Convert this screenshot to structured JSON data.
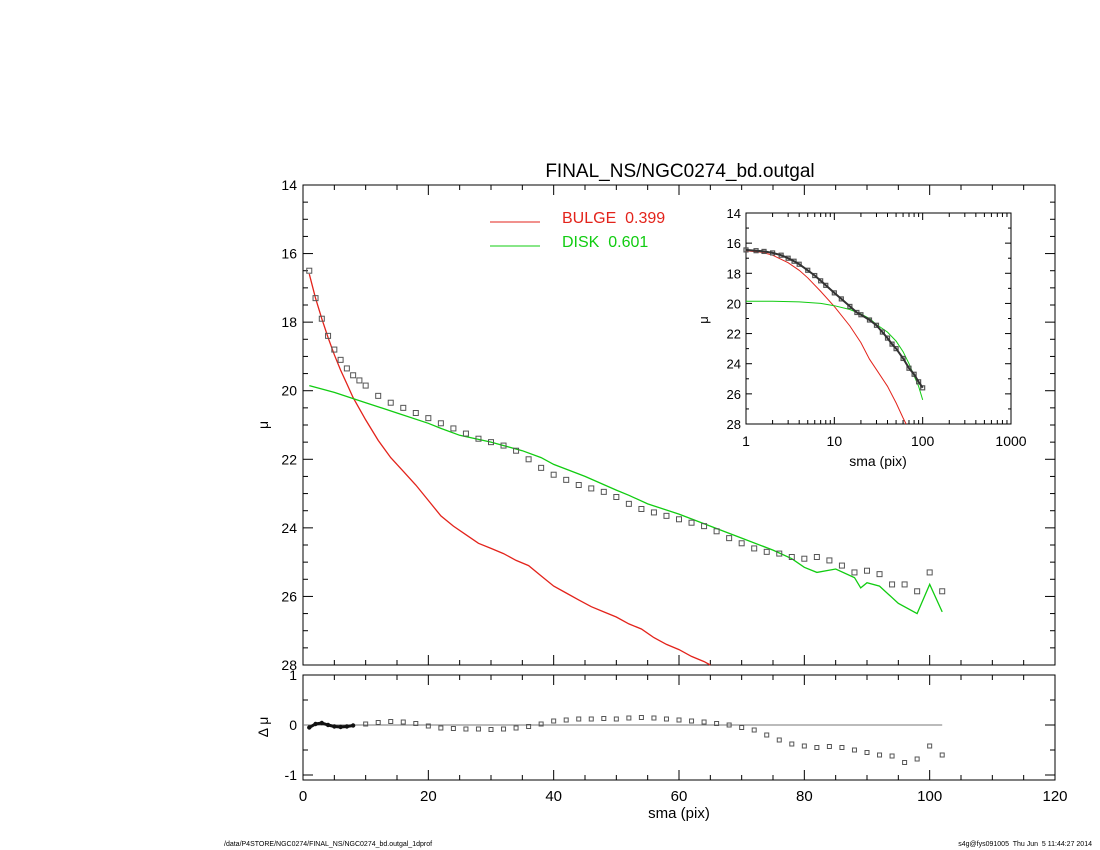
{
  "chart_data": [
    {
      "id": "main",
      "type": "line",
      "title": "FINAL_NS/NGC0274_bd.outgal",
      "xlabel": "sma (pix)",
      "ylabel": "μ",
      "xlim": [
        0,
        120
      ],
      "ylim": [
        28,
        14
      ],
      "y_inverted": true,
      "xticks": [
        0,
        20,
        40,
        60,
        80,
        100,
        120
      ],
      "yticks": [
        14,
        16,
        18,
        20,
        22,
        24,
        26,
        28
      ],
      "grid": false,
      "legend": {
        "position": "top-center"
      },
      "series": [
        {
          "name": "BULGE  0.399",
          "color": "#e3231b",
          "style": "line",
          "x": [
            1,
            2,
            3,
            4,
            5,
            6,
            7,
            8,
            10,
            12,
            14,
            16,
            18,
            20,
            22,
            24,
            26,
            28,
            30,
            32,
            34,
            36,
            38,
            40,
            42,
            44,
            46,
            48,
            50,
            52,
            54,
            56,
            58,
            60,
            62,
            64,
            65
          ],
          "y": [
            16.6,
            17.3,
            17.9,
            18.45,
            18.95,
            19.4,
            19.8,
            20.2,
            20.85,
            21.45,
            21.95,
            22.35,
            22.75,
            23.2,
            23.65,
            23.95,
            24.2,
            24.45,
            24.6,
            24.75,
            24.95,
            25.1,
            25.4,
            25.7,
            25.9,
            26.1,
            26.3,
            26.45,
            26.6,
            26.8,
            26.95,
            27.2,
            27.4,
            27.55,
            27.75,
            27.9,
            28.0
          ]
        },
        {
          "name": "DISK  0.601",
          "color": "#11cc11",
          "style": "line",
          "x": [
            1,
            5,
            10,
            15,
            20,
            22,
            25,
            30,
            35,
            38,
            40,
            45,
            50,
            52,
            55,
            60,
            65,
            70,
            75,
            78,
            80,
            82,
            85,
            88,
            89,
            90,
            92,
            95,
            98,
            100,
            102
          ],
          "y": [
            19.85,
            20.05,
            20.35,
            20.65,
            20.95,
            21.1,
            21.3,
            21.5,
            21.75,
            21.95,
            22.15,
            22.5,
            22.9,
            23.05,
            23.3,
            23.6,
            23.95,
            24.3,
            24.65,
            24.9,
            25.15,
            25.3,
            25.2,
            25.45,
            25.75,
            25.6,
            25.7,
            26.2,
            26.5,
            25.65,
            26.45
          ]
        },
        {
          "name": "",
          "color": "#555555",
          "style": "squares",
          "x": [
            1,
            2,
            3,
            4,
            5,
            6,
            7,
            8,
            9,
            10,
            12,
            14,
            16,
            18,
            20,
            22,
            24,
            26,
            28,
            30,
            32,
            34,
            36,
            38,
            40,
            42,
            44,
            46,
            48,
            50,
            52,
            54,
            56,
            58,
            60,
            62,
            64,
            66,
            68,
            70,
            72,
            74,
            76,
            78,
            80,
            82,
            84,
            86,
            88,
            90,
            92,
            94,
            96,
            98,
            100,
            102
          ],
          "y": [
            16.5,
            17.3,
            17.9,
            18.4,
            18.8,
            19.1,
            19.35,
            19.55,
            19.7,
            19.85,
            20.15,
            20.35,
            20.5,
            20.65,
            20.8,
            20.95,
            21.1,
            21.25,
            21.4,
            21.5,
            21.6,
            21.75,
            22.0,
            22.25,
            22.45,
            22.6,
            22.75,
            22.85,
            22.95,
            23.1,
            23.3,
            23.45,
            23.55,
            23.65,
            23.75,
            23.85,
            23.95,
            24.1,
            24.3,
            24.45,
            24.6,
            24.7,
            24.75,
            24.85,
            24.9,
            24.85,
            24.95,
            25.1,
            25.3,
            25.25,
            25.35,
            25.65,
            25.65,
            25.85,
            25.3,
            25.85
          ]
        }
      ]
    },
    {
      "id": "inset",
      "type": "line",
      "xlabel": "sma (pix)",
      "ylabel": "μ",
      "xscale": "log",
      "xlim": [
        1,
        1000
      ],
      "ylim": [
        28,
        14
      ],
      "y_inverted": true,
      "xticks": [
        1,
        10,
        100,
        1000
      ],
      "yticks": [
        14,
        16,
        18,
        20,
        22,
        24,
        26,
        28
      ],
      "series": [
        {
          "name": "BULGE",
          "color": "#e3231b",
          "x": [
            1,
            1.5,
            2,
            3,
            4,
            5,
            7,
            10,
            15,
            20,
            25,
            30,
            40,
            50,
            60,
            65
          ],
          "y": [
            16.5,
            16.6,
            16.8,
            17.3,
            17.8,
            18.3,
            19.2,
            20.2,
            21.5,
            22.6,
            23.7,
            24.4,
            25.5,
            26.6,
            27.6,
            28.0
          ]
        },
        {
          "name": "DISK",
          "color": "#11cc11",
          "x": [
            1,
            2,
            4,
            7,
            10,
            15,
            20,
            25,
            30,
            40,
            50,
            60,
            70,
            80,
            90,
            100
          ],
          "y": [
            19.85,
            19.85,
            19.9,
            20.0,
            20.15,
            20.4,
            20.7,
            21.0,
            21.4,
            21.9,
            22.5,
            23.2,
            24.0,
            24.8,
            25.5,
            26.4
          ]
        },
        {
          "name": "",
          "color": "#555555",
          "style": "squares",
          "x": [
            1,
            1.3,
            1.6,
            2,
            2.5,
            3,
            3.5,
            4,
            5,
            6,
            7,
            8,
            10,
            12,
            15,
            18,
            20,
            25,
            30,
            35,
            40,
            45,
            50,
            60,
            70,
            80,
            90,
            100
          ],
          "y": [
            16.45,
            16.5,
            16.55,
            16.65,
            16.8,
            17.0,
            17.2,
            17.4,
            17.8,
            18.15,
            18.5,
            18.8,
            19.3,
            19.7,
            20.2,
            20.6,
            20.75,
            21.1,
            21.45,
            21.9,
            22.3,
            22.7,
            23.0,
            23.65,
            24.3,
            24.7,
            25.2,
            25.6
          ]
        }
      ]
    },
    {
      "id": "residual",
      "type": "scatter",
      "xlabel": "sma (pix)",
      "ylabel": "Δ μ",
      "xlim": [
        0,
        120
      ],
      "ylim": [
        -1.1,
        1.0
      ],
      "xticks": [
        0,
        20,
        40,
        60,
        80,
        100,
        120
      ],
      "yticks": [
        1,
        0,
        -1
      ],
      "zero_line": true,
      "series": [
        {
          "name": "",
          "color": "#555555",
          "x": [
            1,
            2,
            3,
            4,
            5,
            6,
            7,
            8,
            10,
            12,
            14,
            16,
            18,
            20,
            22,
            24,
            26,
            28,
            30,
            32,
            34,
            36,
            38,
            40,
            42,
            44,
            46,
            48,
            50,
            52,
            54,
            56,
            58,
            60,
            62,
            64,
            66,
            68,
            70,
            72,
            74,
            76,
            78,
            80,
            82,
            84,
            86,
            88,
            90,
            92,
            94,
            96,
            98,
            100,
            102
          ],
          "y": [
            -0.05,
            0.02,
            0.04,
            0.0,
            -0.03,
            -0.04,
            -0.03,
            -0.01,
            0.02,
            0.05,
            0.07,
            0.06,
            0.03,
            -0.02,
            -0.06,
            -0.07,
            -0.08,
            -0.08,
            -0.09,
            -0.08,
            -0.06,
            -0.03,
            0.02,
            0.08,
            0.1,
            0.12,
            0.12,
            0.13,
            0.12,
            0.14,
            0.15,
            0.14,
            0.12,
            0.1,
            0.08,
            0.06,
            0.03,
            0.0,
            -0.05,
            -0.1,
            -0.2,
            -0.3,
            -0.38,
            -0.42,
            -0.45,
            -0.43,
            -0.45,
            -0.5,
            -0.55,
            -0.6,
            -0.62,
            -0.75,
            -0.68,
            -0.42,
            -0.6
          ]
        }
      ]
    }
  ],
  "footer": {
    "left": "/data/P4STORE/NGC0274/FINAL_NS/NGC0274_bd.outgal_1dprof",
    "right": "s4g@fys091005  Thu Jun  5 11:44:27 2014"
  }
}
